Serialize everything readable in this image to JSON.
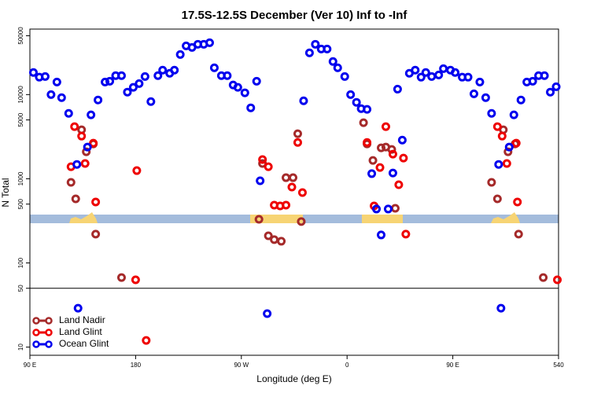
{
  "chart_data": {
    "type": "scatter",
    "title": "17.5S-12.5S December (Ver 10)   Inf to -Inf",
    "x_label": "Longitude (deg E)",
    "y_label": "N Total",
    "log_y": true,
    "xlim": [
      90,
      540
    ],
    "ylim": [
      8,
      60000
    ],
    "xticks": [
      {
        "value": 90,
        "label": "90 E"
      },
      180,
      {
        "value": 270,
        "label": "90 W"
      },
      {
        "value": 360,
        "label": "0"
      },
      {
        "value": 450,
        "label": "90 E"
      },
      540
    ],
    "yticks": [
      10,
      50,
      100,
      500,
      1000,
      5000,
      10000,
      50000
    ],
    "reference_line": 50,
    "legend": "lower left",
    "series": [
      {
        "name": "Land Nadir",
        "color": "#a52a2a",
        "x": [
          125,
          129,
          134,
          138,
          144,
          146,
          168,
          285,
          288,
          293,
          298,
          304,
          308,
          314,
          318,
          321,
          374,
          377,
          382,
          389,
          393,
          398,
          401,
          483,
          488,
          493,
          497,
          503,
          506,
          527
        ],
        "values": [
          906,
          577,
          3820,
          2090,
          2590,
          220,
          67,
          330,
          1520,
          210,
          189,
          181,
          1030,
          1030,
          3430,
          310,
          4630,
          2590,
          1650,
          2330,
          2380,
          2230,
          446,
          906,
          577,
          3820,
          2090,
          2590,
          220,
          67
        ]
      },
      {
        "name": "Land Glint",
        "color": "#ee0000",
        "x": [
          125,
          128,
          134,
          137,
          144,
          146,
          180,
          181,
          189,
          288,
          293,
          298,
          303,
          308,
          313,
          318,
          322,
          377,
          383,
          388,
          393,
          399,
          404,
          408,
          410,
          488,
          492,
          496,
          504,
          505,
          539
        ],
        "values": [
          1390,
          4160,
          3210,
          1520,
          2650,
          530,
          63,
          1250,
          12,
          1690,
          1390,
          486,
          476,
          486,
          796,
          2700,
          685,
          2700,
          476,
          1360,
          4160,
          1960,
          849,
          1760,
          220,
          4160,
          3210,
          1520,
          2650,
          530,
          63
        ]
      },
      {
        "name": "Ocean Glint",
        "color": "#0000ee",
        "x": [
          93,
          98,
          103,
          108,
          113,
          117,
          123,
          130,
          131,
          139,
          142,
          148,
          154,
          158,
          163,
          168,
          173,
          178,
          183,
          188,
          193,
          199,
          203,
          209,
          213,
          218,
          223,
          228,
          233,
          238,
          243,
          247,
          253,
          258,
          263,
          267,
          273,
          278,
          283,
          286,
          292,
          323,
          328,
          333,
          338,
          343,
          348,
          352,
          358,
          363,
          368,
          372,
          377,
          381,
          385,
          389,
          395,
          399,
          403,
          407,
          413,
          418,
          423,
          427,
          432,
          438,
          442,
          448,
          452,
          458,
          463,
          468,
          473,
          478,
          483,
          489,
          491,
          498,
          502,
          508,
          513,
          518,
          523,
          528,
          533,
          538
        ],
        "values": [
          18300,
          16100,
          16400,
          10000,
          14100,
          9200,
          5980,
          1480,
          29,
          2380,
          5740,
          8630,
          14100,
          14400,
          16800,
          16800,
          10700,
          12200,
          13500,
          16400,
          8260,
          16800,
          19500,
          17900,
          19500,
          29900,
          37900,
          36300,
          39600,
          39600,
          41300,
          20800,
          16800,
          16800,
          13000,
          12200,
          10500,
          6960,
          14400,
          946,
          25,
          8440,
          31300,
          39600,
          34800,
          34800,
          24700,
          20800,
          16400,
          10000,
          8090,
          6810,
          6670,
          1150,
          437,
          215,
          437,
          1170,
          11600,
          2880,
          17900,
          19500,
          16100,
          18300,
          16400,
          17100,
          20300,
          19500,
          18300,
          16100,
          16100,
          10200,
          14100,
          9200,
          5980,
          1480,
          29,
          2380,
          5740,
          8630,
          14100,
          14400,
          16800,
          16800,
          10700,
          12400
        ]
      }
    ]
  }
}
